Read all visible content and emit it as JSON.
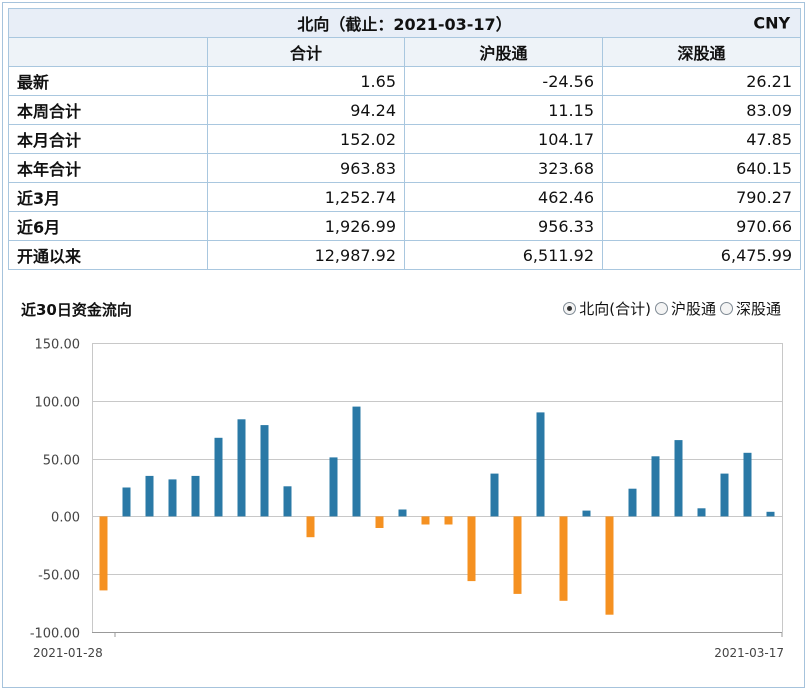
{
  "table": {
    "title": "北向（截止：2021-03-17）",
    "currency": "CNY",
    "headers": [
      "合计",
      "沪股通",
      "深股通"
    ],
    "rows": [
      {
        "label": "最新",
        "values": [
          "1.65",
          "-24.56",
          "26.21"
        ]
      },
      {
        "label": "本周合计",
        "values": [
          "94.24",
          "11.15",
          "83.09"
        ]
      },
      {
        "label": "本月合计",
        "values": [
          "152.02",
          "104.17",
          "47.85"
        ]
      },
      {
        "label": "本年合计",
        "values": [
          "963.83",
          "323.68",
          "640.15"
        ]
      },
      {
        "label": "近3月",
        "values": [
          "1,252.74",
          "462.46",
          "790.27"
        ]
      },
      {
        "label": "近6月",
        "values": [
          "1,926.99",
          "956.33",
          "970.66"
        ]
      },
      {
        "label": "开通以来",
        "values": [
          "12,987.92",
          "6,511.92",
          "6,475.99"
        ]
      }
    ]
  },
  "chart_controls": {
    "title": "近30日资金流向",
    "options": [
      {
        "label": "北向(合计)",
        "selected": true
      },
      {
        "label": "沪股通",
        "selected": false
      },
      {
        "label": "深股通",
        "selected": false
      }
    ]
  },
  "chart_data": {
    "type": "bar",
    "title": "近30日资金流向",
    "x_start_label": "2021-01-28",
    "x_end_label": "2021-03-17",
    "ylim": [
      -100,
      150
    ],
    "yticks": [
      "150.00",
      "100.00",
      "50.00",
      "0.00",
      "-50.00",
      "-100.00"
    ],
    "values": [
      -64,
      25,
      35,
      32,
      35,
      68,
      84,
      79,
      26,
      -18,
      51,
      95,
      -10,
      6,
      -7,
      -7,
      -56,
      37,
      -67,
      90,
      -73,
      5,
      -85,
      24,
      52,
      66,
      7,
      37,
      55,
      4
    ],
    "grid": true,
    "legend": "none",
    "colors": {
      "positive": "#2a79a6",
      "negative": "#f59121"
    }
  }
}
